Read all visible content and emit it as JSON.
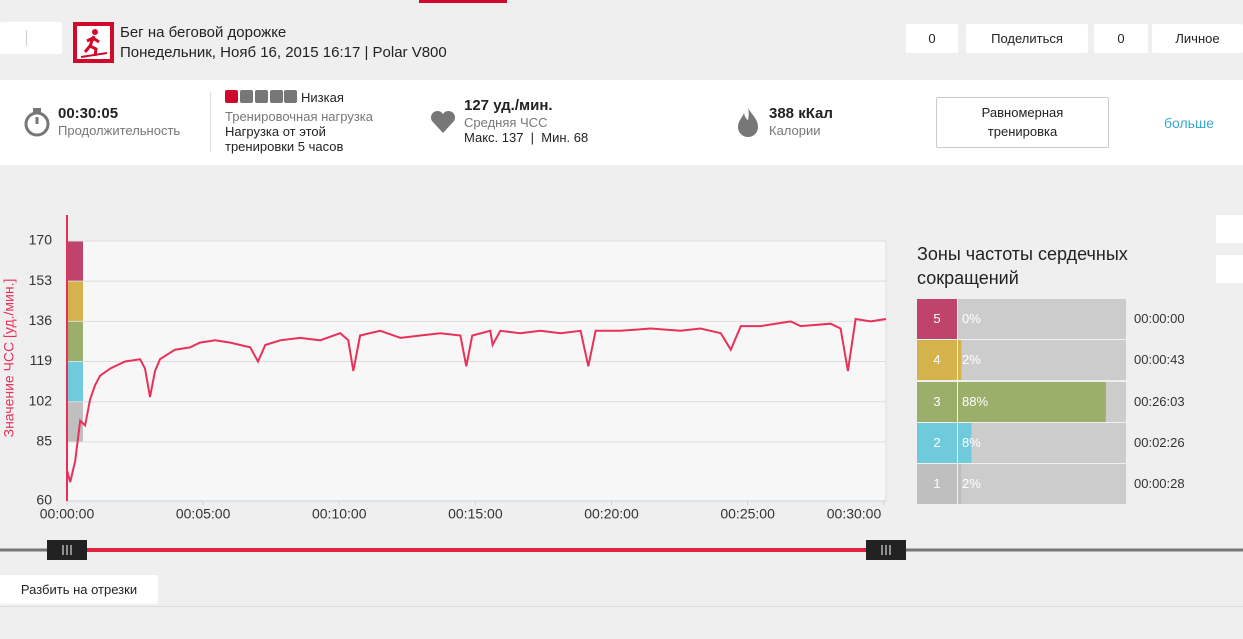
{
  "header": {
    "title": "Бег на беговой дорожке",
    "subtitle": "Понедельник, Нояб 16, 2015 16:17 | Polar V800",
    "buttons": [
      "0",
      "Поделиться",
      "0",
      "Личное"
    ]
  },
  "summary": {
    "duration": "00:30:05",
    "duration_label": "Продолжительность",
    "load_level": "Низкая",
    "load_label": "Тренировочная нагрузка",
    "load_text_1": "Нагрузка от этой",
    "load_text_2": "тренировки 5 часов",
    "avg_hr": "127 уд./мин.",
    "avg_hr_label": "Средняя ЧСС",
    "hr_range": "Макс. 137  |  Мин. 68",
    "calories": "388 кКал",
    "calories_label": "Калории",
    "type_button": [
      "Равномерная",
      "тренировка"
    ],
    "more_link": "больше"
  },
  "chart_data": {
    "type": "line",
    "y_label": "Значение ЧСС [уд./мин.]",
    "color": "#e8315a",
    "grid": true,
    "x": [
      0,
      7,
      18,
      29,
      40,
      51,
      62,
      73,
      95,
      128,
      161,
      172,
      183,
      194,
      205,
      238,
      271,
      293,
      326,
      360,
      404,
      421,
      437,
      470,
      514,
      558,
      602,
      620,
      631,
      646,
      690,
      735,
      779,
      823,
      867,
      880,
      893,
      933,
      938,
      955,
      999,
      1043,
      1088,
      1132,
      1149,
      1165,
      1220,
      1286,
      1352,
      1396,
      1441,
      1463,
      1485,
      1529,
      1595,
      1617,
      1683,
      1705,
      1721,
      1738,
      1771,
      1805
    ],
    "values": [
      73,
      68,
      77,
      94,
      92,
      103,
      109,
      113,
      116,
      119,
      120,
      116,
      104,
      115,
      120,
      124,
      125,
      127,
      128,
      127,
      125,
      119,
      126,
      128,
      129,
      128,
      131,
      128,
      115,
      130,
      132,
      129,
      130,
      131,
      130,
      117,
      130,
      132,
      126,
      132,
      131,
      132,
      131,
      132,
      117,
      132,
      132,
      133,
      132,
      133,
      131,
      124,
      134,
      134,
      136,
      134,
      135,
      133,
      115,
      137,
      136,
      137
    ],
    "xlim": [
      0,
      1805
    ],
    "xticks": [
      {
        "value": 0,
        "label": "00:00:00"
      },
      {
        "value": 300,
        "label": "00:05:00"
      },
      {
        "value": 600,
        "label": "00:10:00"
      },
      {
        "value": 900,
        "label": "00:15:00"
      },
      {
        "value": 1200,
        "label": "00:20:00"
      },
      {
        "value": 1500,
        "label": "00:25:00"
      },
      {
        "value": 1800,
        "label": "00:30:00"
      }
    ],
    "ylim": [
      60,
      170
    ],
    "yticks": [
      60,
      85,
      102,
      119,
      136,
      153,
      170
    ]
  },
  "zones": {
    "title_1": "Зоны частоты сердечных",
    "title_2": "сокращений",
    "items": [
      {
        "zone": 5,
        "percent": 0,
        "percent_label": "0%",
        "time": "00:00:00",
        "color": "#c0436b"
      },
      {
        "zone": 4,
        "percent": 2,
        "percent_label": "2%",
        "time": "00:00:43",
        "color": "#d4b24c"
      },
      {
        "zone": 3,
        "percent": 88,
        "percent_label": "88%",
        "time": "00:26:03",
        "color": "#9caf6a"
      },
      {
        "zone": 2,
        "percent": 8,
        "percent_label": "8%",
        "time": "00:02:26",
        "color": "#6fcbdb"
      },
      {
        "zone": 1,
        "percent": 2,
        "percent_label": "2%",
        "time": "00:00:28",
        "color": "#bfbfbf"
      }
    ]
  },
  "footer": {
    "split_button": "Разбить на отрезки"
  }
}
